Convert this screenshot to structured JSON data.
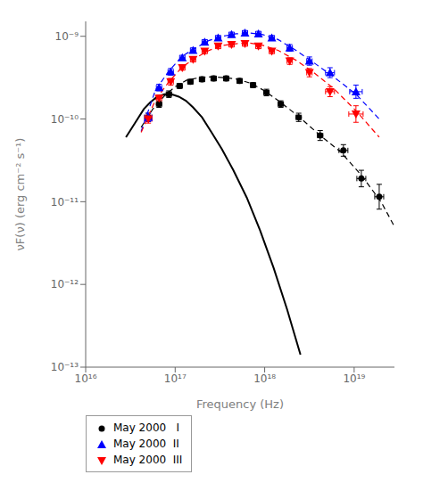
{
  "chart_data": {
    "type": "scatter",
    "xlabel": "Frequency   (Hz)",
    "ylabel": "νF(ν)   (erg cm⁻² s⁻¹)",
    "log": true,
    "grid": false,
    "legend": "lower left",
    "xlim": [
      1e+16,
      2.8184e+19
    ],
    "ylim": [
      1e-13,
      1.5136e-09
    ],
    "xticks": [
      {
        "value": 1e+16,
        "label": "10¹⁶"
      },
      {
        "value": 1e+17,
        "label": "10¹⁷"
      },
      {
        "value": 1e+18,
        "label": "10¹⁸"
      },
      {
        "value": 1e+19,
        "label": "10¹⁹"
      }
    ],
    "yticks": [
      {
        "value": 1e-13,
        "label": "10⁻¹³"
      },
      {
        "value": 1e-12,
        "label": "10⁻¹²"
      },
      {
        "value": 1e-11,
        "label": "10⁻¹¹"
      },
      {
        "value": 1e-10,
        "label": "10⁻¹⁰"
      },
      {
        "value": 1e-09,
        "label": "10⁻⁹"
      }
    ],
    "series": [
      {
        "name": "May 2000   I",
        "type": "scatter",
        "color": "black",
        "marker": "circle",
        "x": [
          5.0119e+16,
          6.6069e+16,
          8.5114e+16,
          1.122e+17,
          1.4791e+17,
          1.9953e+17,
          2.6915e+17,
          3.7154e+17,
          5.2481e+17,
          7.4131e+17,
          1.0471e+18,
          1.5136e+18,
          2.3988e+18,
          4.1687e+18,
          7.5858e+18,
          1.2023e+19,
          1.9055e+19
        ],
        "values": [
          1.0471e-10,
          1.5136e-10,
          1.9953e-10,
          2.5119e-10,
          2.8184e-10,
          3.02e-10,
          3.0903e-10,
          3.0903e-10,
          2.884e-10,
          2.5704e-10,
          2.0893e-10,
          1.5136e-10,
          1.0471e-10,
          6.3096e-11,
          4.1687e-11,
          1.9055e-11,
          1.1482e-11
        ],
        "xerr": [
          [
            4410000000000000.0,
            4836000000000000.0
          ],
          [
            4410000000000000.0,
            4725000000000000.0
          ],
          [
            5681000000000000.0,
            6087000000000000.0
          ],
          [
            7489000000000000.0,
            8025000000000000.0
          ],
          [
            9872000000000000.0,
            1.058e+16
          ],
          [
            1.332e+16,
            1.427e+16
          ],
          [
            1.796e+16,
            1.925e+16
          ],
          [
            2.48e+16,
            2.657e+16
          ],
          [
            3.503e+16,
            3.753e+16
          ],
          [
            4.948e+16,
            5.302e+16
          ],
          [
            6.989e+16,
            7.489e+16
          ],
          [
            1.01e+17,
            1.083e+17
          ],
          [
            1.601e+17,
            1.716e+17
          ],
          [
            2.782e+17,
            2.981e+17
          ],
          [
            8.249e+17,
            9.256e+17
          ],
          [
            1.307e+18,
            1.467e+18
          ],
          [
            2.072e+18,
            2.325e+18
          ]
        ],
        "yerr": [
          [
            1.139e-11,
            1.278e-11
          ],
          [
            1.332e-11,
            1.46e-11
          ],
          [
            1.756e-11,
            1.925e-11
          ],
          [
            1.677e-11,
            1.797e-11
          ],
          [
            1.881e-11,
            2.016e-11
          ],
          [
            2.016e-11,
            2.16e-11
          ],
          [
            2.063e-11,
            2.21e-11
          ],
          [
            2.063e-11,
            2.21e-11
          ],
          [
            1.925e-11,
            2.063e-11
          ],
          [
            1.716e-11,
            1.838e-11
          ],
          [
            1.838e-11,
            2.016e-11
          ],
          [
            1.332e-11,
            1.46e-11
          ],
          [
            1.139e-11,
            1.278e-11
          ],
          [
            8.142e-12,
            9.348e-12
          ],
          [
            6.206e-12,
            7.291e-12
          ],
          [
            3.919e-12,
            4.934e-12
          ],
          [
            3.353e-12,
            4.737e-12
          ]
        ]
      },
      {
        "type": "line",
        "color": "black",
        "line_style": "dashed",
        "x": [
          4.1687e+16,
          5.6234e+16,
          7.5858e+16,
          1e+17,
          1.349e+17,
          1.8621e+17,
          2.5704e+17,
          3.5481e+17,
          5.0119e+17,
          7.0795e+17,
          1e+18,
          1.5136e+18,
          2.3988e+18,
          3.9811e+18,
          7.0795e+18,
          1.2023e+19,
          1.9953e+19,
          2.8184e+19
        ],
        "values": [
          7.9433e-11,
          1.3183e-10,
          1.9055e-10,
          2.4547e-10,
          2.9512e-10,
          3.1623e-10,
          3.2359e-10,
          3.1623e-10,
          3.02e-10,
          2.6915e-10,
          2.1878e-10,
          1.5849e-10,
          1.0715e-10,
          6.6069e-11,
          3.9811e-11,
          2.0893e-11,
          1e-11,
          5.0119e-12
        ]
      },
      {
        "name": "May 2000  II",
        "type": "scatter",
        "color": "blue",
        "marker": "triangle-up",
        "x": [
          5.0119e+16,
          6.6069e+16,
          8.9125e+16,
          1.2023e+17,
          1.5849e+17,
          2.138e+17,
          3.02e+17,
          4.2658e+17,
          6.0256e+17,
          8.5114e+17,
          1.2023e+18,
          1.9055e+18,
          3.1623e+18,
          5.3703e+18,
          1.0471e+19
        ],
        "values": [
          1.0471e-10,
          2.3988e-10,
          3.7154e-10,
          5.4954e-10,
          6.7608e-10,
          8.5114e-10,
          9.5499e-10,
          1.0471e-09,
          1.0965e-09,
          1.0715e-09,
          9.5499e-10,
          7.2444e-10,
          5.0119e-10,
          3.6308e-10,
          2.138e-10
        ],
        "xerr": [
          [
            4410000000000000.0,
            4836000000000000.0
          ],
          [
            4410000000000000.0,
            4725000000000000.0
          ],
          [
            5949000000000000.0,
            6374000000000000.0
          ],
          [
            8025000000000000.0,
            8599000000000000.0
          ],
          [
            1.058e+16,
            1.134e+16
          ],
          [
            1.427e+16,
            1.529e+16
          ],
          [
            2.016e+16,
            2.16e+16
          ],
          [
            2.847e+16,
            3.051e+16
          ],
          [
            4.022e+16,
            4.31e+16
          ],
          [
            5.681e+16,
            6.087e+16
          ],
          [
            8.025e+16,
            8.599e+16
          ],
          [
            1.272e+17,
            1.363e+17
          ],
          [
            2.111e+17,
            2.262e+17
          ],
          [
            5.84e+17,
            6.553e+17
          ],
          [
            1.559e+18,
            1.831e+18
          ]
        ],
        "yerr": [
          [
            1.139e-11,
            1.278e-11
          ],
          [
            2.111e-11,
            2.314e-11
          ],
          [
            3.269e-11,
            3.585e-11
          ],
          [
            3.668e-11,
            3.93e-11
          ],
          [
            4.513e-11,
            4.835e-11
          ],
          [
            5.681e-11,
            6.087e-11
          ],
          [
            6.374e-11,
            6.83e-11
          ],
          [
            6.989e-11,
            7.489e-11
          ],
          [
            7.319e-11,
            7.842e-11
          ],
          [
            7.152e-11,
            7.663e-11
          ],
          [
            6.374e-11,
            6.83e-11
          ],
          [
            6.374e-11,
            6.989e-11
          ],
          [
            5.45e-11,
            6.116e-11
          ],
          [
            4.685e-11,
            5.379e-11
          ],
          [
            3.597e-11,
            4.324e-11
          ]
        ]
      },
      {
        "type": "line",
        "color": "blue",
        "line_style": "dashed",
        "x": [
          4.1687e+16,
          6.0256e+16,
          8.5114e+16,
          1.2023e+17,
          1.6982e+17,
          2.3988e+17,
          3.3884e+17,
          4.7863e+17,
          6.7608e+17,
          9.5499e+17,
          1.4125e+18,
          2.2387e+18,
          3.5481e+18,
          5.8884e+18,
          1.0471e+19,
          1.9055e+19
        ],
        "values": [
          7.0795e-11,
          2.2387e-10,
          3.8019e-10,
          5.7544e-10,
          7.2444e-10,
          8.9125e-10,
          1e-09,
          1.0715e-09,
          1.0965e-09,
          1.0471e-09,
          9.1201e-10,
          6.7608e-10,
          4.7863e-10,
          3.2359e-10,
          1.9953e-10,
          1e-10
        ]
      },
      {
        "name": "May 2000  III",
        "type": "scatter",
        "color": "red",
        "marker": "triangle-down",
        "x": [
          5.0119e+16,
          6.6069e+16,
          8.9125e+16,
          1.2023e+17,
          1.5849e+17,
          2.138e+17,
          3.02e+17,
          4.2658e+17,
          6.0256e+17,
          8.5114e+17,
          1.2023e+18,
          1.9055e+18,
          3.1623e+18,
          5.3703e+18,
          1.0471e+19
        ],
        "values": [
          1e-10,
          1.7783e-10,
          2.8184e-10,
          4.1687e-10,
          5.2481e-10,
          6.6069e-10,
          7.5858e-10,
          7.9433e-10,
          8.1283e-10,
          7.5858e-10,
          6.6069e-10,
          5.0119e-10,
          3.6308e-10,
          2.138e-10,
          1.1482e-10
        ],
        "xerr": [
          [
            4410000000000000.0,
            4836000000000000.0
          ],
          [
            4410000000000000.0,
            4725000000000000.0
          ],
          [
            5949000000000000.0,
            6374000000000000.0
          ],
          [
            8025000000000000.0,
            8599000000000000.0
          ],
          [
            1.058e+16,
            1.134e+16
          ],
          [
            1.427e+16,
            1.529e+16
          ],
          [
            2.016e+16,
            2.16e+16
          ],
          [
            2.847e+16,
            3.051e+16
          ],
          [
            4.022e+16,
            4.31e+16
          ],
          [
            5.681e+16,
            6.087e+16
          ],
          [
            8.025e+16,
            8.599e+16
          ],
          [
            1.272e+17,
            1.363e+17
          ],
          [
            2.111e+17,
            2.262e+17
          ],
          [
            5.84e+17,
            6.553e+17
          ],
          [
            1.762e+18,
            2.118e+18
          ]
        ],
        "yerr": [
          [
            1.087e-11,
            1.22e-11
          ],
          [
            1.565e-11,
            1.716e-11
          ],
          [
            2.48e-11,
            2.719e-11
          ],
          [
            2.782e-11,
            2.981e-11
          ],
          [
            3.503e-11,
            3.753e-11
          ],
          [
            4.41e-11,
            4.725e-11
          ],
          [
            5.063e-11,
            5.425e-11
          ],
          [
            5.302e-11,
            5.681e-11
          ],
          [
            5.425e-11,
            5.813e-11
          ],
          [
            5.063e-11,
            5.425e-11
          ],
          [
            4.41e-11,
            4.725e-11
          ],
          [
            4.41e-11,
            4.835e-11
          ],
          [
            3.948e-11,
            4.43e-11
          ],
          [
            2.759e-11,
            3.167e-11
          ],
          [
            2.362e-11,
            2.973e-11
          ]
        ]
      },
      {
        "type": "line",
        "color": "red",
        "line_style": "dashed",
        "x": [
          4.1687e+16,
          6.0256e+16,
          8.5114e+16,
          1.2023e+17,
          1.6982e+17,
          2.3988e+17,
          3.3884e+17,
          4.7863e+17,
          6.7608e+17,
          9.5499e+17,
          1.4125e+18,
          2.2387e+18,
          3.5481e+18,
          5.8884e+18,
          1.0471e+19,
          1.9055e+19
        ],
        "values": [
          6.9183e-11,
          1.6982e-10,
          2.8184e-10,
          4.2658e-10,
          5.4954e-10,
          6.7608e-10,
          7.7625e-10,
          8.1283e-10,
          8.3176e-10,
          7.7625e-10,
          6.7608e-10,
          5.1286e-10,
          3.6308e-10,
          2.3442e-10,
          1.2589e-10,
          6.0256e-11
        ]
      },
      {
        "type": "line",
        "color": "black",
        "line_style": "solid",
        "x": [
          2.8184e+16,
          3.5481e+16,
          4.4668e+16,
          5.2481e+16,
          6.3096e+16,
          7.5858e+16,
          9.1201e+16,
          1.0965e+17,
          1.3183e+17,
          1.5849e+17,
          1.9953e+17,
          2.5119e+17,
          3.3113e+17,
          4.4668e+17,
          6.3096e+17,
          8.9125e+17,
          1.2589e+18,
          1.7783e+18,
          2.5119e+18
        ],
        "values": [
          6.0256e-11,
          8.9125e-11,
          1.3183e-10,
          1.5849e-10,
          1.8621e-10,
          1.9953e-10,
          1.9953e-10,
          1.8621e-10,
          1.6596e-10,
          1.3804e-10,
          1.0471e-10,
          7.0795e-11,
          4.3652e-11,
          2.3988e-11,
          1.122e-11,
          4.4668e-12,
          1.5849e-12,
          5.0119e-13,
          1.4125e-13
        ]
      }
    ]
  }
}
